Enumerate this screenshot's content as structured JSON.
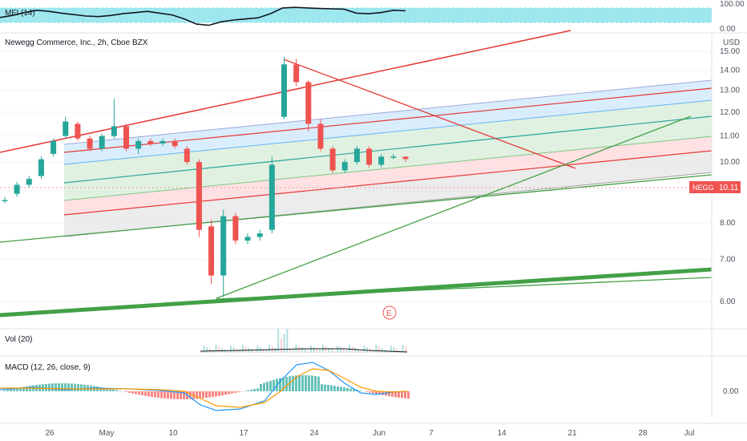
{
  "chart_data": {
    "type": "candlestick",
    "title": "Newegg Commerce, Inc., 2h, Cboe BZX",
    "currency": "USD",
    "last_price": {
      "symbol": "NEGG",
      "value": "10.11",
      "color": "#ef5350"
    },
    "earnings_marker": "E",
    "x_ticks": [
      "26",
      "May",
      "10",
      "17",
      "24",
      "Jun",
      "7",
      "14",
      "21",
      "28",
      "Jul"
    ],
    "price_axis": {
      "ticks": [
        "15.00",
        "14.00",
        "13.00",
        "12.00",
        "11.00",
        "10.00",
        "9.00",
        "8.00",
        "7.00",
        "6.00"
      ],
      "ylim": [
        5.8,
        15.4
      ],
      "log": true
    },
    "candles": [
      {
        "d": "Apr 19",
        "o": 8.7,
        "h": 8.8,
        "l": 8.6,
        "c": 8.7
      },
      {
        "d": "Apr 20",
        "o": 8.9,
        "h": 9.3,
        "l": 8.8,
        "c": 9.2
      },
      {
        "d": "Apr 21",
        "o": 9.2,
        "h": 9.5,
        "l": 9.1,
        "c": 9.4
      },
      {
        "d": "Apr 22",
        "o": 9.5,
        "h": 10.2,
        "l": 9.4,
        "c": 10.1
      },
      {
        "d": "Apr 23",
        "o": 10.3,
        "h": 10.9,
        "l": 10.2,
        "c": 10.8
      },
      {
        "d": "Apr 26",
        "o": 11.0,
        "h": 11.8,
        "l": 10.9,
        "c": 11.6
      },
      {
        "d": "Apr 27",
        "o": 11.5,
        "h": 11.6,
        "l": 10.8,
        "c": 10.9
      },
      {
        "d": "Apr 28",
        "o": 10.9,
        "h": 11.0,
        "l": 10.4,
        "c": 10.5
      },
      {
        "d": "Apr 29",
        "o": 10.5,
        "h": 11.1,
        "l": 10.4,
        "c": 11.0
      },
      {
        "d": "Apr 30",
        "o": 11.0,
        "h": 12.6,
        "l": 10.9,
        "c": 11.4
      },
      {
        "d": "May 3",
        "o": 11.4,
        "h": 11.5,
        "l": 10.4,
        "c": 10.5
      },
      {
        "d": "May 4",
        "o": 10.5,
        "h": 10.9,
        "l": 10.3,
        "c": 10.8
      },
      {
        "d": "May 5",
        "o": 10.8,
        "h": 10.9,
        "l": 10.6,
        "c": 10.7
      },
      {
        "d": "May 6",
        "o": 10.7,
        "h": 10.9,
        "l": 10.6,
        "c": 10.8
      },
      {
        "d": "May 7",
        "o": 10.8,
        "h": 10.9,
        "l": 10.5,
        "c": 10.6
      },
      {
        "d": "May 10",
        "o": 10.5,
        "h": 10.6,
        "l": 9.9,
        "c": 10.0
      },
      {
        "d": "May 11",
        "o": 10.0,
        "h": 10.1,
        "l": 7.6,
        "c": 7.8
      },
      {
        "d": "May 12",
        "o": 7.9,
        "h": 8.1,
        "l": 6.4,
        "c": 6.6
      },
      {
        "d": "May 13",
        "o": 6.6,
        "h": 8.4,
        "l": 6.1,
        "c": 8.2
      },
      {
        "d": "May 14",
        "o": 8.2,
        "h": 8.3,
        "l": 7.4,
        "c": 7.5
      },
      {
        "d": "May 17",
        "o": 7.5,
        "h": 7.7,
        "l": 7.4,
        "c": 7.6
      },
      {
        "d": "May 18",
        "o": 7.6,
        "h": 7.8,
        "l": 7.5,
        "c": 7.7
      },
      {
        "d": "May 19",
        "o": 7.8,
        "h": 10.2,
        "l": 7.7,
        "c": 9.9
      },
      {
        "d": "May 20",
        "o": 11.8,
        "h": 14.7,
        "l": 11.7,
        "c": 14.3
      },
      {
        "d": "May 21",
        "o": 14.3,
        "h": 14.6,
        "l": 13.2,
        "c": 13.4
      },
      {
        "d": "May 24",
        "o": 13.4,
        "h": 13.5,
        "l": 11.2,
        "c": 11.5
      },
      {
        "d": "May 25",
        "o": 11.5,
        "h": 11.7,
        "l": 10.4,
        "c": 10.5
      },
      {
        "d": "May 26",
        "o": 10.5,
        "h": 10.6,
        "l": 9.6,
        "c": 9.7
      },
      {
        "d": "May 27",
        "o": 9.7,
        "h": 10.1,
        "l": 9.6,
        "c": 10.0
      },
      {
        "d": "May 28",
        "o": 10.0,
        "h": 10.6,
        "l": 9.9,
        "c": 10.5
      },
      {
        "d": "Jun 1",
        "o": 10.5,
        "h": 10.6,
        "l": 9.8,
        "c": 9.9
      },
      {
        "d": "Jun 2",
        "o": 9.9,
        "h": 10.3,
        "l": 9.8,
        "c": 10.2
      },
      {
        "d": "Jun 3",
        "o": 10.2,
        "h": 10.3,
        "l": 10.1,
        "c": 10.2
      },
      {
        "d": "Jun 4",
        "o": 10.2,
        "h": 10.2,
        "l": 10.0,
        "c": 10.11
      }
    ],
    "indicators": {
      "mfi": {
        "name": "MFI (14)",
        "ticks": [
          "100.00",
          "0.00"
        ],
        "band": [
          20,
          80
        ],
        "band_color": "#7fdfea",
        "values": [
          45,
          52,
          62,
          70,
          66,
          60,
          55,
          50,
          48,
          52,
          58,
          62,
          66,
          60,
          54,
          40,
          22,
          18,
          30,
          36,
          40,
          44,
          58,
          78,
          80,
          78,
          76,
          75,
          74,
          60,
          58,
          62,
          70,
          68
        ]
      },
      "volume": {
        "name": "Vol (20)"
      },
      "macd": {
        "name": "MACD (12, 26, close, 9)",
        "tick": "0.00"
      }
    },
    "colors": {
      "up": "#26a69a",
      "down": "#ef5350",
      "green": "#43a047",
      "red": "#e53935"
    }
  }
}
